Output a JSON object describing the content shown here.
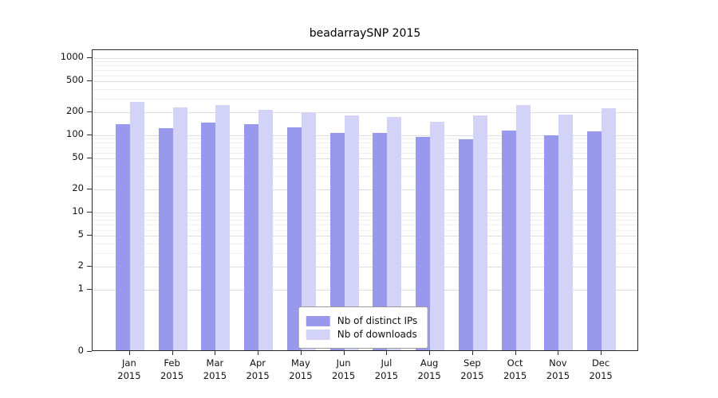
{
  "chart_data": {
    "type": "bar",
    "title": "beadarraySNP 2015",
    "categories": [
      "Jan",
      "Feb",
      "Mar",
      "Apr",
      "May",
      "Jun",
      "Jul",
      "Aug",
      "Sep",
      "Oct",
      "Nov",
      "Dec"
    ],
    "year_label": "2015",
    "series": [
      {
        "name": "Nb of distinct IPs",
        "color": "#9898ec",
        "values": [
          140,
          124,
          148,
          138,
          128,
          108,
          107,
          96,
          88,
          116,
          100,
          114
        ]
      },
      {
        "name": "Nb of downloads",
        "color": "#d3d3f8",
        "values": [
          270,
          230,
          248,
          212,
          198,
          182,
          173,
          150,
          180,
          246,
          184,
          224
        ]
      }
    ],
    "yticks": [
      0,
      1,
      2,
      5,
      10,
      20,
      50,
      100,
      200,
      500,
      1000
    ],
    "scale": "symlog",
    "ylim": [
      0,
      1400
    ],
    "grid": true,
    "legend_position": "lower center",
    "axis_color": "#2b2b2b",
    "grid_major_color": "#dedede",
    "grid_minor_color": "#efefef"
  }
}
